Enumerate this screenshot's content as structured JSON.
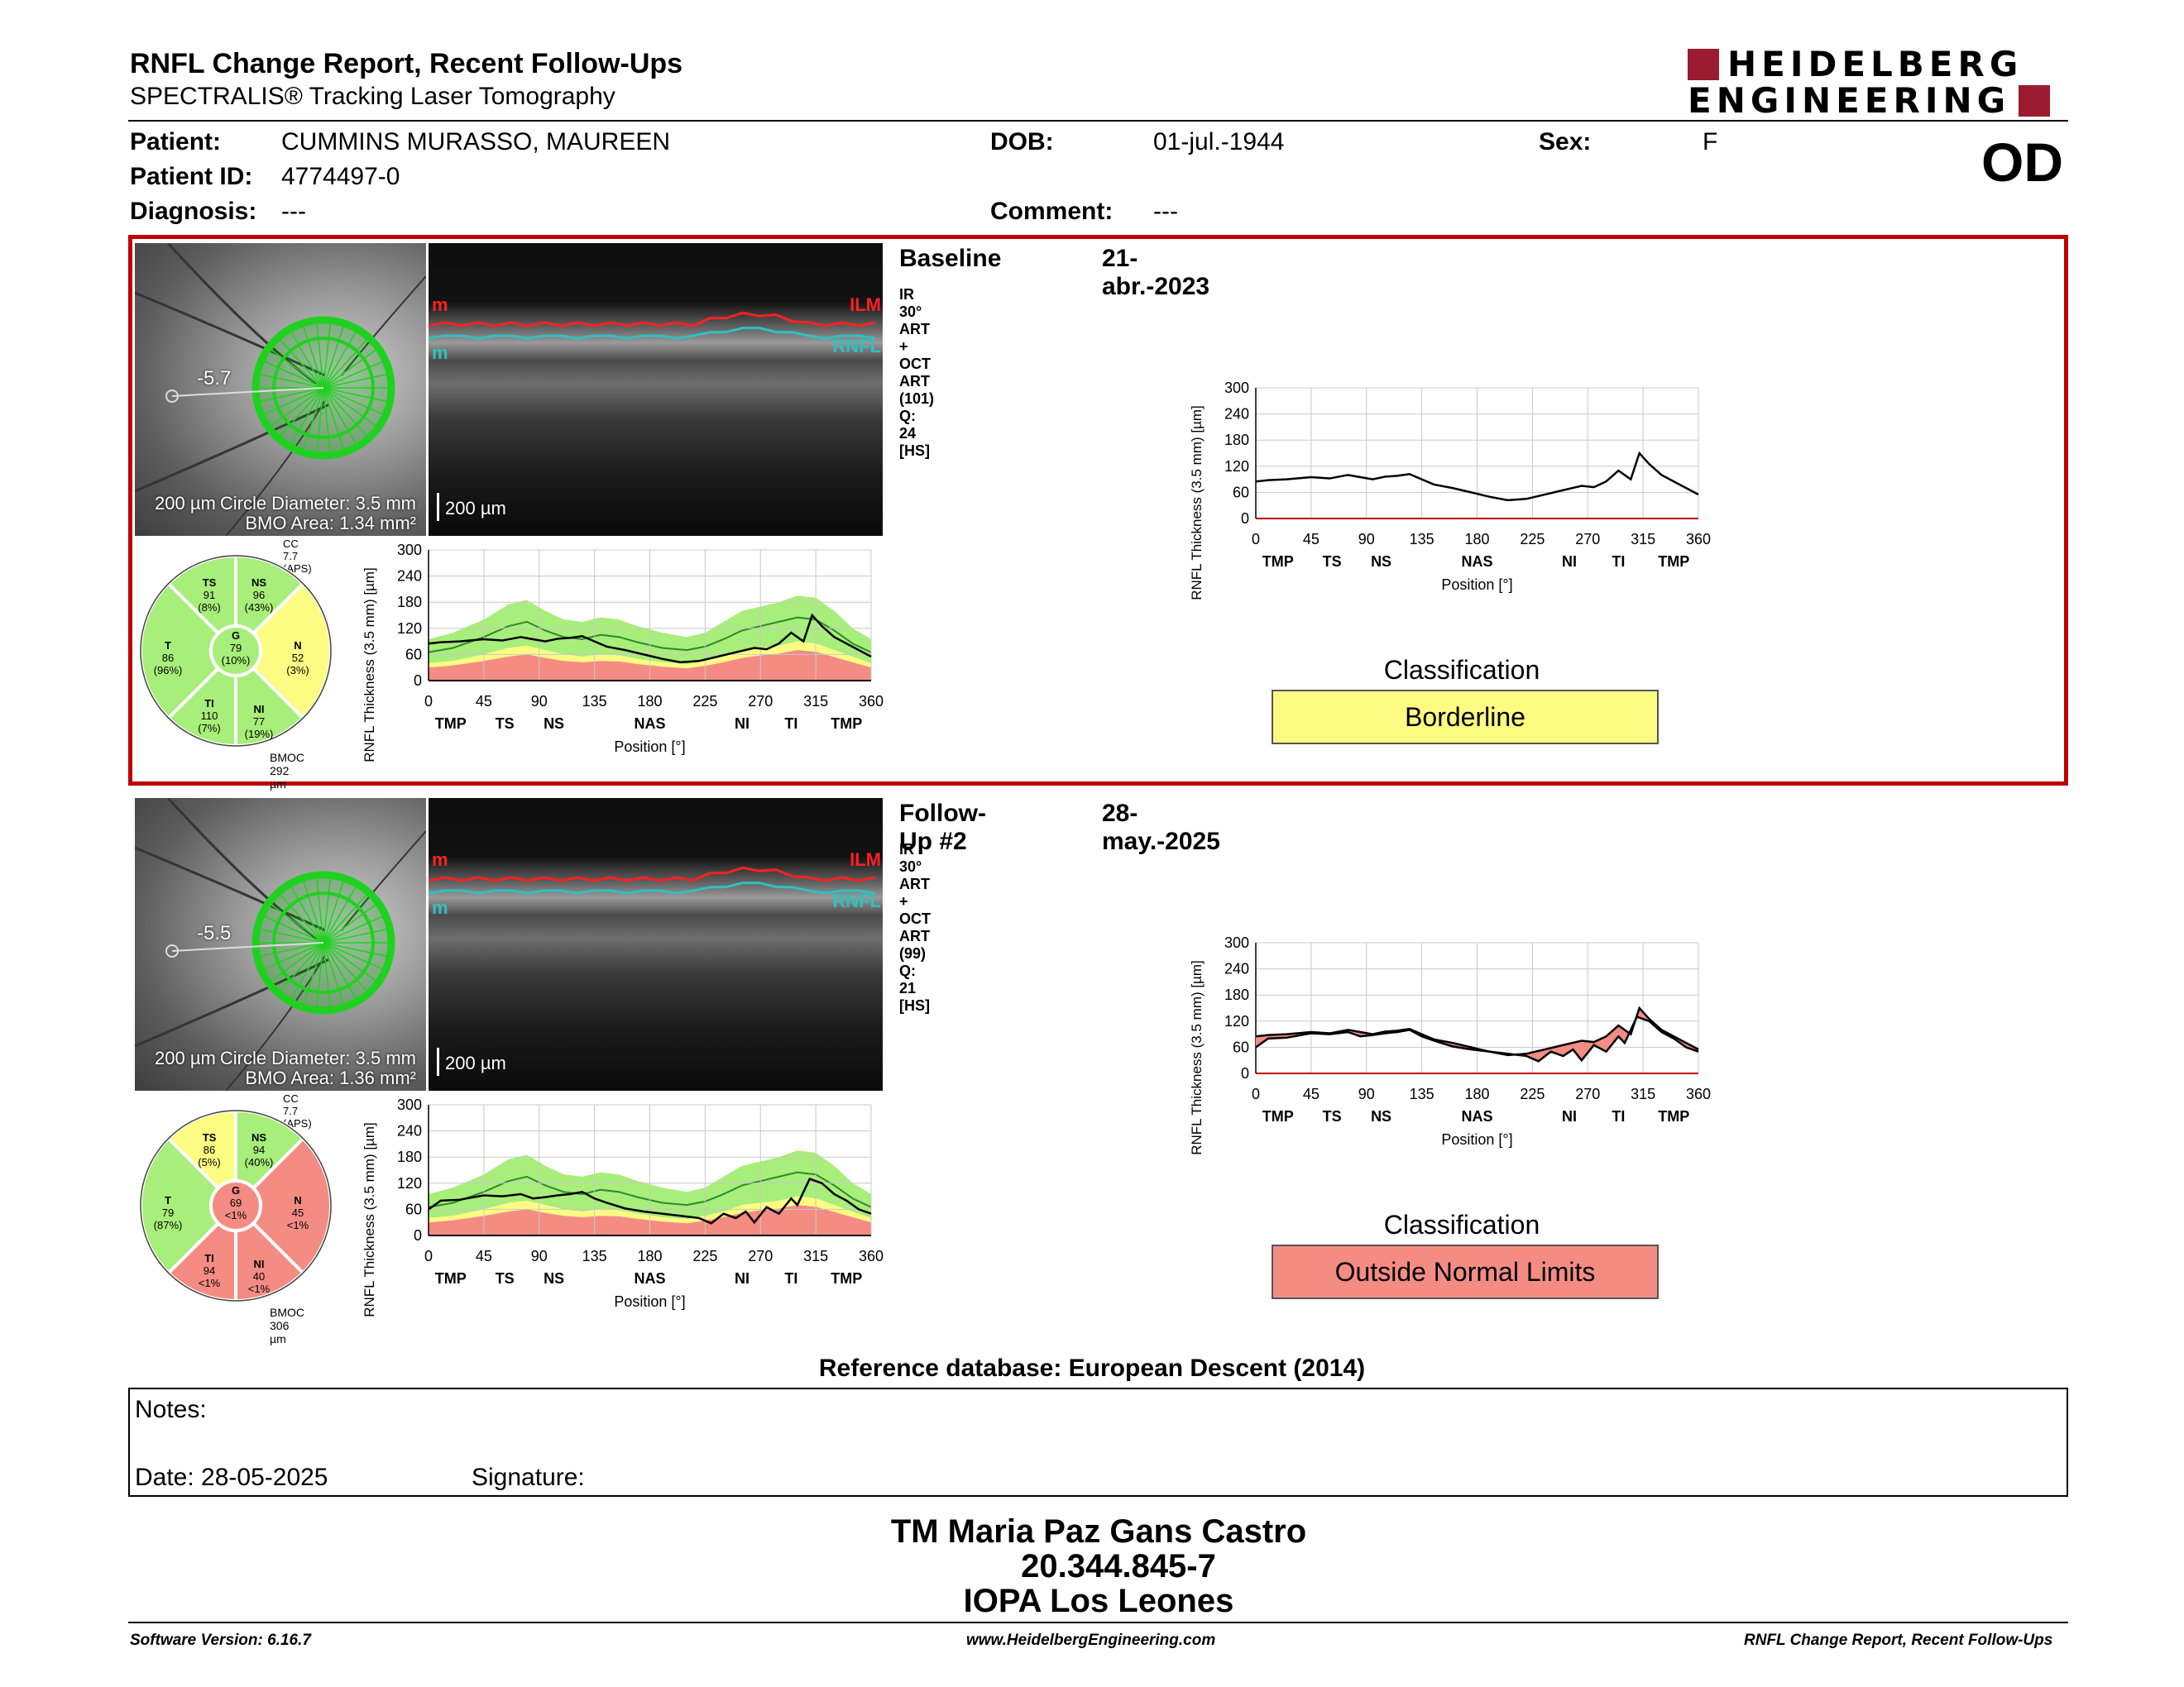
{
  "header": {
    "title": "RNFL Change Report, Recent Follow-Ups",
    "subtitle": "SPECTRALIS® Tracking Laser Tomography",
    "logo_line1": "HEIDELBERG",
    "logo_line2": "ENGINEERING",
    "eye": "OD"
  },
  "patient": {
    "patient_label": "Patient:",
    "patient_value": "CUMMINS MURASSO, MAUREEN",
    "id_label": "Patient ID:",
    "id_value": "4774497-0",
    "diag_label": "Diagnosis:",
    "diag_value": "---",
    "dob_label": "DOB:",
    "dob_value": "01-jul.-1944",
    "comment_label": "Comment:",
    "comment_value": "---",
    "sex_label": "Sex:",
    "sex_value": "F"
  },
  "colors": {
    "frame": "#c00000",
    "green": "#a8ee7a",
    "yellow": "#fcfc82",
    "red": "#f48c84",
    "brand": "#9b1b30"
  },
  "exams": [
    {
      "title": "Baseline",
      "date": "21-abr.-2023",
      "scan_info": "IR 30° ART + OCT ART (101) Q: 24 [HS]",
      "fundus_scale": "200 µm",
      "circle_diameter": "Circle Diameter: 3.5 mm",
      "bmo_area": "BMO Area: 1.34 mm²",
      "fovea_angle": "-5.7",
      "oct_scale": "200 µm",
      "ilm_label": "ILM",
      "rnfl_label": "RNFL",
      "marker_m": "m",
      "cc": "CC 7.7 (APS)",
      "bmoc": "BMOC 292 µm",
      "sectors": {
        "TS": {
          "value": "91",
          "pct": "(8%)",
          "class": "green"
        },
        "NS": {
          "value": "96",
          "pct": "(43%)",
          "class": "green"
        },
        "N": {
          "value": "52",
          "pct": "(3%)",
          "class": "yellow"
        },
        "NI": {
          "value": "77",
          "pct": "(19%)",
          "class": "green"
        },
        "TI": {
          "value": "110",
          "pct": "(7%)",
          "class": "green"
        },
        "T": {
          "value": "86",
          "pct": "(96%)",
          "class": "green"
        },
        "G": {
          "value": "79",
          "pct": "(10%)",
          "class": "green"
        }
      },
      "classification_label": "Classification",
      "classification": "Borderline",
      "classification_color": "#fcfc82"
    },
    {
      "title": "Follow-Up #2",
      "date": "28-may.-2025",
      "scan_info": "IR 30° ART + OCT ART (99) Q: 21 [HS]",
      "fundus_scale": "200 µm",
      "circle_diameter": "Circle Diameter: 3.5 mm",
      "bmo_area": "BMO Area: 1.36 mm²",
      "fovea_angle": "-5.5",
      "oct_scale": "200 µm",
      "ilm_label": "ILM",
      "rnfl_label": "RNFL",
      "marker_m": "m",
      "cc": "CC 7.7 (APS)",
      "bmoc": "BMOC 306 µm",
      "sectors": {
        "TS": {
          "value": "86",
          "pct": "(5%)",
          "class": "yellow"
        },
        "NS": {
          "value": "94",
          "pct": "(40%)",
          "class": "green"
        },
        "N": {
          "value": "45",
          "pct": "<1%",
          "class": "red"
        },
        "NI": {
          "value": "40",
          "pct": "<1%",
          "class": "red"
        },
        "TI": {
          "value": "94",
          "pct": "<1%",
          "class": "red"
        },
        "T": {
          "value": "79",
          "pct": "(87%)",
          "class": "green"
        },
        "G": {
          "value": "69",
          "pct": "<1%",
          "class": "red"
        }
      },
      "classification_label": "Classification",
      "classification": "Outside Normal Limits",
      "classification_color": "#f48c84"
    }
  ],
  "chart_data": [
    {
      "type": "line",
      "id": "baseline-profile",
      "xlabel": "Position [°]",
      "ylabel": "RNFL Thickness (3.5 mm) [µm]",
      "xlim": [
        0,
        360
      ],
      "ylim": [
        0,
        300
      ],
      "xticks": [
        0,
        45,
        90,
        135,
        180,
        225,
        270,
        315,
        360
      ],
      "yticks": [
        0,
        60,
        120,
        180,
        240,
        300
      ],
      "sector_labels": [
        "TMP",
        "TS",
        "NS",
        "NAS",
        "NI",
        "TI",
        "TMP"
      ],
      "sector_positions": [
        18,
        62,
        102,
        180,
        255,
        295,
        340
      ],
      "normative": {
        "x": [
          0,
          20,
          45,
          65,
          80,
          95,
          110,
          125,
          140,
          155,
          170,
          190,
          210,
          225,
          240,
          255,
          270,
          285,
          300,
          315,
          330,
          345,
          360
        ],
        "p95": [
          95,
          110,
          140,
          175,
          185,
          160,
          140,
          135,
          145,
          140,
          125,
          110,
          100,
          110,
          135,
          160,
          170,
          180,
          195,
          190,
          160,
          120,
          95
        ],
        "p50": [
          65,
          75,
          100,
          125,
          135,
          115,
          100,
          95,
          105,
          100,
          88,
          75,
          70,
          78,
          95,
          115,
          125,
          135,
          145,
          140,
          115,
          85,
          65
        ],
        "p5": [
          40,
          45,
          60,
          75,
          80,
          70,
          60,
          55,
          60,
          58,
          50,
          42,
          38,
          45,
          55,
          70,
          75,
          80,
          90,
          85,
          70,
          55,
          40
        ],
        "p1": [
          30,
          35,
          45,
          55,
          60,
          52,
          45,
          42,
          45,
          44,
          38,
          32,
          28,
          34,
          42,
          52,
          58,
          62,
          70,
          66,
          54,
          42,
          30
        ]
      },
      "series": [
        {
          "name": "Baseline",
          "x": [
            0,
            10,
            25,
            45,
            60,
            75,
            85,
            95,
            105,
            115,
            125,
            135,
            145,
            160,
            175,
            190,
            205,
            220,
            235,
            250,
            265,
            275,
            285,
            295,
            305,
            312,
            320,
            330,
            340,
            350,
            360
          ],
          "values": [
            85,
            88,
            90,
            95,
            92,
            100,
            95,
            90,
            96,
            98,
            102,
            90,
            78,
            70,
            60,
            50,
            42,
            45,
            55,
            65,
            75,
            72,
            85,
            110,
            90,
            150,
            125,
            100,
            85,
            70,
            55
          ]
        }
      ]
    },
    {
      "type": "line",
      "id": "baseline-change",
      "xlabel": "Position [°]",
      "ylabel": "RNFL Thickness (3.5 mm) [µm]",
      "xlim": [
        0,
        360
      ],
      "ylim": [
        0,
        300
      ],
      "xticks": [
        0,
        45,
        90,
        135,
        180,
        225,
        270,
        315,
        360
      ],
      "yticks": [
        0,
        60,
        120,
        180,
        240,
        300
      ],
      "sector_labels": [
        "TMP",
        "TS",
        "NS",
        "NAS",
        "NI",
        "TI",
        "TMP"
      ],
      "sector_positions": [
        18,
        62,
        102,
        180,
        255,
        295,
        340
      ],
      "series": [
        {
          "name": "Baseline",
          "x": [
            0,
            10,
            25,
            45,
            60,
            75,
            85,
            95,
            105,
            115,
            125,
            135,
            145,
            160,
            175,
            190,
            205,
            220,
            235,
            250,
            265,
            275,
            285,
            295,
            305,
            312,
            320,
            330,
            340,
            350,
            360
          ],
          "values": [
            85,
            88,
            90,
            95,
            92,
            100,
            95,
            90,
            96,
            98,
            102,
            90,
            78,
            70,
            60,
            50,
            42,
            45,
            55,
            65,
            75,
            72,
            85,
            110,
            90,
            150,
            125,
            100,
            85,
            70,
            55
          ]
        }
      ]
    },
    {
      "type": "line",
      "id": "followup-profile",
      "xlabel": "Position [°]",
      "ylabel": "RNFL Thickness (3.5 mm) [µm]",
      "xlim": [
        0,
        360
      ],
      "ylim": [
        0,
        300
      ],
      "xticks": [
        0,
        45,
        90,
        135,
        180,
        225,
        270,
        315,
        360
      ],
      "yticks": [
        0,
        60,
        120,
        180,
        240,
        300
      ],
      "sector_labels": [
        "TMP",
        "TS",
        "NS",
        "NAS",
        "NI",
        "TI",
        "TMP"
      ],
      "sector_positions": [
        18,
        62,
        102,
        180,
        255,
        295,
        340
      ],
      "normative": {
        "x": [
          0,
          20,
          45,
          65,
          80,
          95,
          110,
          125,
          140,
          155,
          170,
          190,
          210,
          225,
          240,
          255,
          270,
          285,
          300,
          315,
          330,
          345,
          360
        ],
        "p95": [
          95,
          110,
          140,
          175,
          185,
          160,
          140,
          135,
          145,
          140,
          125,
          110,
          100,
          110,
          135,
          160,
          170,
          180,
          195,
          190,
          160,
          120,
          95
        ],
        "p50": [
          65,
          75,
          100,
          125,
          135,
          115,
          100,
          95,
          105,
          100,
          88,
          75,
          70,
          78,
          95,
          115,
          125,
          135,
          145,
          140,
          115,
          85,
          65
        ],
        "p5": [
          40,
          45,
          60,
          75,
          80,
          70,
          60,
          55,
          60,
          58,
          50,
          42,
          38,
          45,
          55,
          70,
          75,
          80,
          90,
          85,
          70,
          55,
          40
        ],
        "p1": [
          30,
          35,
          45,
          55,
          60,
          52,
          45,
          42,
          45,
          44,
          38,
          32,
          28,
          34,
          42,
          52,
          58,
          62,
          70,
          66,
          54,
          42,
          30
        ]
      },
      "series": [
        {
          "name": "Follow-Up #2",
          "x": [
            0,
            10,
            25,
            45,
            60,
            75,
            85,
            95,
            105,
            115,
            125,
            135,
            145,
            160,
            175,
            190,
            205,
            220,
            230,
            240,
            250,
            258,
            265,
            275,
            285,
            295,
            300,
            310,
            320,
            330,
            340,
            350,
            360
          ],
          "values": [
            60,
            80,
            82,
            92,
            90,
            95,
            85,
            88,
            92,
            95,
            100,
            85,
            75,
            62,
            55,
            50,
            45,
            40,
            28,
            50,
            40,
            55,
            30,
            65,
            50,
            85,
            70,
            130,
            120,
            95,
            80,
            60,
            50
          ]
        }
      ]
    },
    {
      "type": "line",
      "id": "followup-change",
      "xlabel": "Position [°]",
      "ylabel": "RNFL Thickness (3.5 mm) [µm]",
      "xlim": [
        0,
        360
      ],
      "ylim": [
        0,
        300
      ],
      "xticks": [
        0,
        45,
        90,
        135,
        180,
        225,
        270,
        315,
        360
      ],
      "yticks": [
        0,
        60,
        120,
        180,
        240,
        300
      ],
      "sector_labels": [
        "TMP",
        "TS",
        "NS",
        "NAS",
        "NI",
        "TI",
        "TMP"
      ],
      "sector_positions": [
        18,
        62,
        102,
        180,
        255,
        295,
        340
      ],
      "series": [
        {
          "name": "Baseline",
          "x": [
            0,
            10,
            25,
            45,
            60,
            75,
            85,
            95,
            105,
            115,
            125,
            135,
            145,
            160,
            175,
            190,
            205,
            220,
            235,
            250,
            265,
            275,
            285,
            295,
            305,
            312,
            320,
            330,
            340,
            350,
            360
          ],
          "values": [
            85,
            88,
            90,
            95,
            92,
            100,
            95,
            90,
            96,
            98,
            102,
            90,
            78,
            70,
            60,
            50,
            42,
            45,
            55,
            65,
            75,
            72,
            85,
            110,
            90,
            150,
            125,
            100,
            85,
            70,
            55
          ]
        },
        {
          "name": "Follow-Up #2",
          "x": [
            0,
            10,
            25,
            45,
            60,
            75,
            85,
            95,
            105,
            115,
            125,
            135,
            145,
            160,
            175,
            190,
            205,
            220,
            230,
            240,
            250,
            258,
            265,
            275,
            285,
            295,
            300,
            310,
            320,
            330,
            340,
            350,
            360
          ],
          "values": [
            60,
            80,
            82,
            92,
            90,
            95,
            85,
            88,
            92,
            95,
            100,
            85,
            75,
            62,
            55,
            50,
            45,
            40,
            28,
            50,
            40,
            55,
            30,
            65,
            50,
            85,
            70,
            130,
            120,
            95,
            80,
            60,
            50
          ]
        }
      ]
    }
  ],
  "reference": "Reference database: European Descent (2014)",
  "notes": {
    "label": "Notes:",
    "date": "Date: 28-05-2025",
    "signature": "Signature:"
  },
  "operator": {
    "name": "TM Maria Paz Gans Castro",
    "id": "20.344.845-7",
    "place": "IOPA Los Leones"
  },
  "footer": {
    "version": "Software Version: 6.16.7",
    "url": "www.HeidelbergEngineering.com",
    "report": "RNFL Change Report, Recent Follow-Ups"
  }
}
